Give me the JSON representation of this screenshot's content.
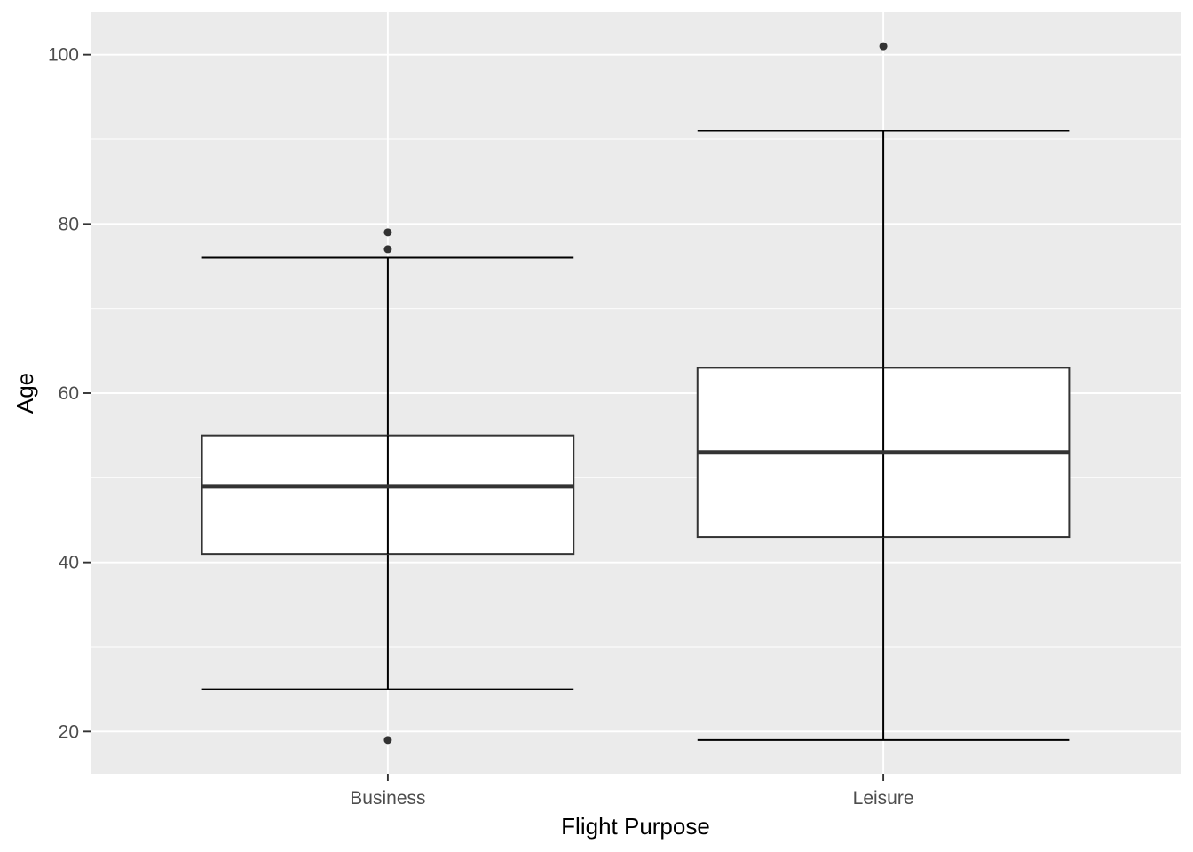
{
  "chart_data": {
    "type": "boxplot",
    "title": "",
    "xlabel": "Flight Purpose",
    "ylabel": "Age",
    "categories": [
      "Business",
      "Leisure"
    ],
    "boxes": [
      {
        "category": "Business",
        "whisker_low": 25,
        "q1": 41,
        "median": 49,
        "q3": 55,
        "whisker_high": 76,
        "outliers": [
          19,
          77,
          79
        ]
      },
      {
        "category": "Leisure",
        "whisker_low": 19,
        "q1": 43,
        "median": 53,
        "q3": 63,
        "whisker_high": 91,
        "outliers": [
          101
        ]
      }
    ],
    "yticks": [
      20,
      40,
      60,
      80,
      100
    ],
    "ylim": [
      15,
      105
    ],
    "grid": true,
    "legend": "none",
    "colors": {
      "panel": "#ebebeb",
      "grid": "#ffffff",
      "box_fill": "#ffffff",
      "line": "#000000",
      "median": "#333333",
      "outlier": "#333333"
    }
  }
}
